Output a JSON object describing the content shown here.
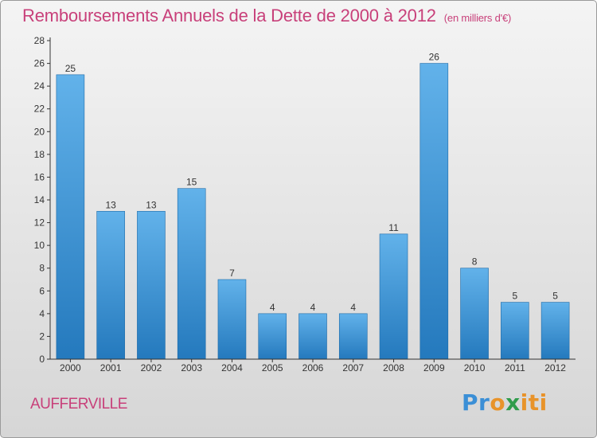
{
  "title": "Remboursements Annuels de la Dette de 2000 à 2012",
  "unit_note": "(en milliers d'€)",
  "commune": "AUFFERVILLE",
  "logo": {
    "part1": "Pr",
    "part2": "o",
    "part3": "x",
    "part4": "iti"
  },
  "colors": {
    "title": "#c8407a",
    "bar_top": "#62b2ea",
    "bar_bottom": "#2479bd",
    "axis": "#333333",
    "grid": "#c8c8c8"
  },
  "chart_data": {
    "type": "bar",
    "categories": [
      "2000",
      "2001",
      "2002",
      "2003",
      "2004",
      "2005",
      "2006",
      "2007",
      "2008",
      "2009",
      "2010",
      "2011",
      "2012"
    ],
    "values": [
      25,
      13,
      13,
      15,
      7,
      4,
      4,
      4,
      11,
      26,
      8,
      5,
      5
    ],
    "ylim": [
      0,
      28
    ],
    "yticks": [
      0,
      2,
      4,
      6,
      8,
      10,
      12,
      14,
      16,
      18,
      20,
      22,
      24,
      26,
      28
    ],
    "grid": false,
    "data_labels": true,
    "legend": "none"
  }
}
